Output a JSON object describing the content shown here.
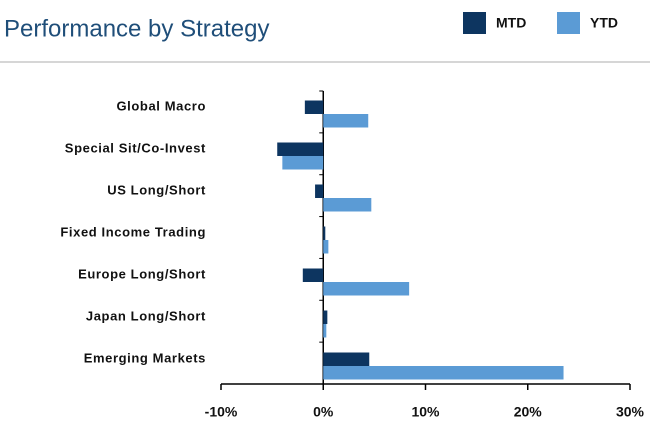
{
  "chart_data": {
    "type": "hbar",
    "title": "Performance by Strategy",
    "categories": [
      "Global Macro",
      "Special Sit/Co-Invest",
      "US Long/Short",
      "Fixed Income Trading",
      "Europe Long/Short",
      "Japan Long/Short",
      "Emerging Markets"
    ],
    "series": [
      {
        "name": "MTD",
        "color": "#0d3560",
        "values": [
          -1.8,
          -4.5,
          -0.8,
          0.2,
          -2.0,
          0.4,
          4.5
        ]
      },
      {
        "name": "YTD",
        "color": "#5b9bd5",
        "values": [
          4.4,
          -4.0,
          4.7,
          0.5,
          8.4,
          0.3,
          23.5
        ]
      }
    ],
    "xlim": [
      -10,
      30
    ],
    "xticks": [
      {
        "value": -10,
        "label": "-10%"
      },
      {
        "value": 0,
        "label": "0%"
      },
      {
        "value": 10,
        "label": "10%"
      },
      {
        "value": 20,
        "label": "20%"
      },
      {
        "value": 30,
        "label": "30%"
      }
    ]
  }
}
